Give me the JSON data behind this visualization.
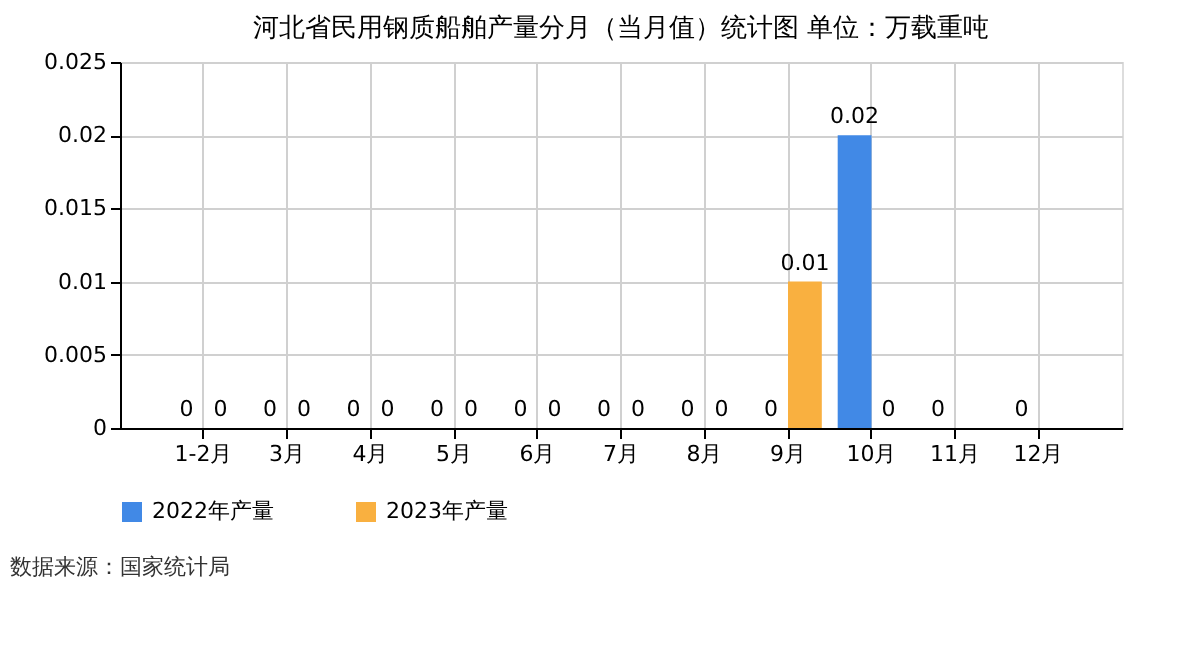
{
  "chart_data": {
    "type": "bar",
    "title": "河北省民用钢质船舶产量分月（当月值）统计图 单位：万载重吨",
    "categories": [
      "1-2月",
      "3月",
      "4月",
      "5月",
      "6月",
      "7月",
      "8月",
      "9月",
      "10月",
      "11月",
      "12月"
    ],
    "series": [
      {
        "name": "2022年产量",
        "color": "#4189e6",
        "values": [
          0,
          0,
          0,
          0,
          0,
          0,
          0,
          0,
          0.02,
          0,
          0
        ]
      },
      {
        "name": "2023年产量",
        "color": "#f9b040",
        "values": [
          0,
          0,
          0,
          0,
          0,
          0,
          0,
          0.01,
          0,
          null,
          null
        ]
      }
    ],
    "ylim": [
      0,
      0.025
    ],
    "yticks": [
      0,
      0.005,
      0.01,
      0.015,
      0.02,
      0.025
    ],
    "grid": true,
    "legend": "bottom",
    "data_labels": true,
    "annotations": [
      "数据来源：国家统计局"
    ]
  }
}
